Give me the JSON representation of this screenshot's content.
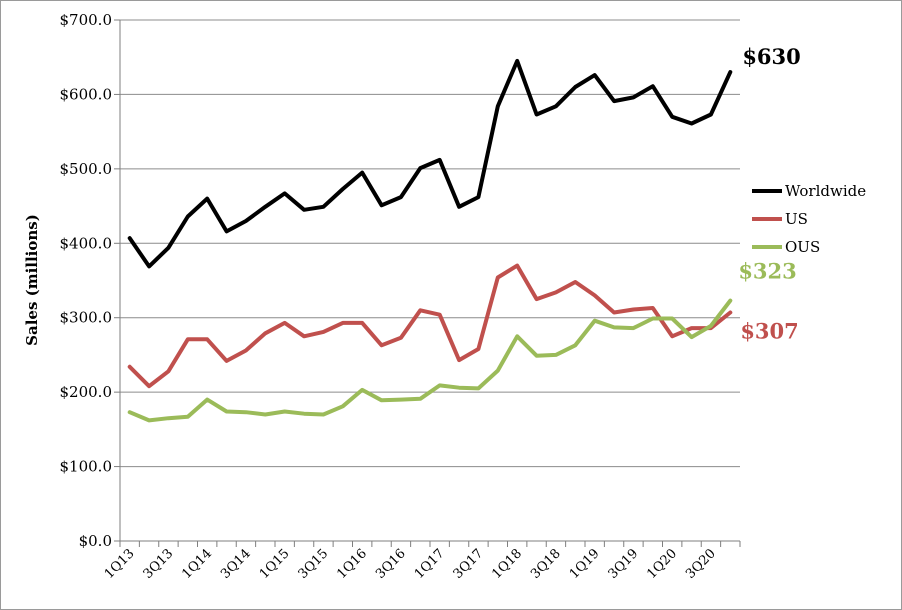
{
  "chart_data": {
    "type": "line",
    "ylabel": "Sales (millions)",
    "xlabel": "",
    "title": "",
    "ylim": [
      0,
      700
    ],
    "y_ticks": [
      0,
      100,
      200,
      300,
      400,
      500,
      600,
      700
    ],
    "y_tick_labels": [
      "$0.0",
      "$100.0",
      "$200.0",
      "$300.0",
      "$400.0",
      "$500.0",
      "$600.0",
      "$700.0"
    ],
    "x": [
      "1Q13",
      "2Q13",
      "3Q13",
      "4Q13",
      "1Q14",
      "2Q14",
      "3Q14",
      "4Q14",
      "1Q15",
      "2Q15",
      "3Q15",
      "4Q15",
      "1Q16",
      "2Q16",
      "3Q16",
      "4Q16",
      "1Q17",
      "2Q17",
      "3Q17",
      "4Q17",
      "1Q18",
      "2Q18",
      "3Q18",
      "4Q18",
      "1Q19",
      "2Q19",
      "3Q19",
      "4Q19",
      "1Q20",
      "2Q20",
      "3Q20",
      "4Q20"
    ],
    "x_tick_labels": [
      "1Q13",
      "3Q13",
      "1Q14",
      "3Q14",
      "1Q15",
      "3Q15",
      "1Q16",
      "3Q16",
      "1Q17",
      "3Q17",
      "1Q18",
      "3Q18",
      "1Q19",
      "3Q19",
      "1Q20",
      "3Q20"
    ],
    "grid": "horizontal",
    "legend_position": "right",
    "series": [
      {
        "name": "Worldwide",
        "color": "#000000",
        "values": [
          407,
          369,
          394,
          436,
          460,
          416,
          430,
          449,
          467,
          445,
          449,
          473,
          495,
          451,
          462,
          501,
          512,
          449,
          462,
          584,
          645,
          573,
          584,
          610,
          626,
          591,
          596,
          611,
          570,
          561,
          573,
          630
        ],
        "end_label": "$630"
      },
      {
        "name": "US",
        "color": "#c0504d",
        "values": [
          234,
          208,
          228,
          271,
          271,
          242,
          256,
          279,
          293,
          275,
          281,
          293,
          293,
          263,
          273,
          310,
          304,
          243,
          258,
          354,
          370,
          325,
          334,
          348,
          330,
          307,
          311,
          313,
          275,
          286,
          286,
          307
        ],
        "end_label": "$307"
      },
      {
        "name": "OUS",
        "color": "#9bbb59",
        "values": [
          173,
          162,
          165,
          167,
          190,
          174,
          173,
          170,
          174,
          171,
          170,
          181,
          203,
          189,
          190,
          191,
          209,
          206,
          205,
          229,
          275,
          249,
          250,
          263,
          296,
          287,
          286,
          299,
          299,
          274,
          289,
          323
        ],
        "end_label": "$323"
      }
    ]
  }
}
